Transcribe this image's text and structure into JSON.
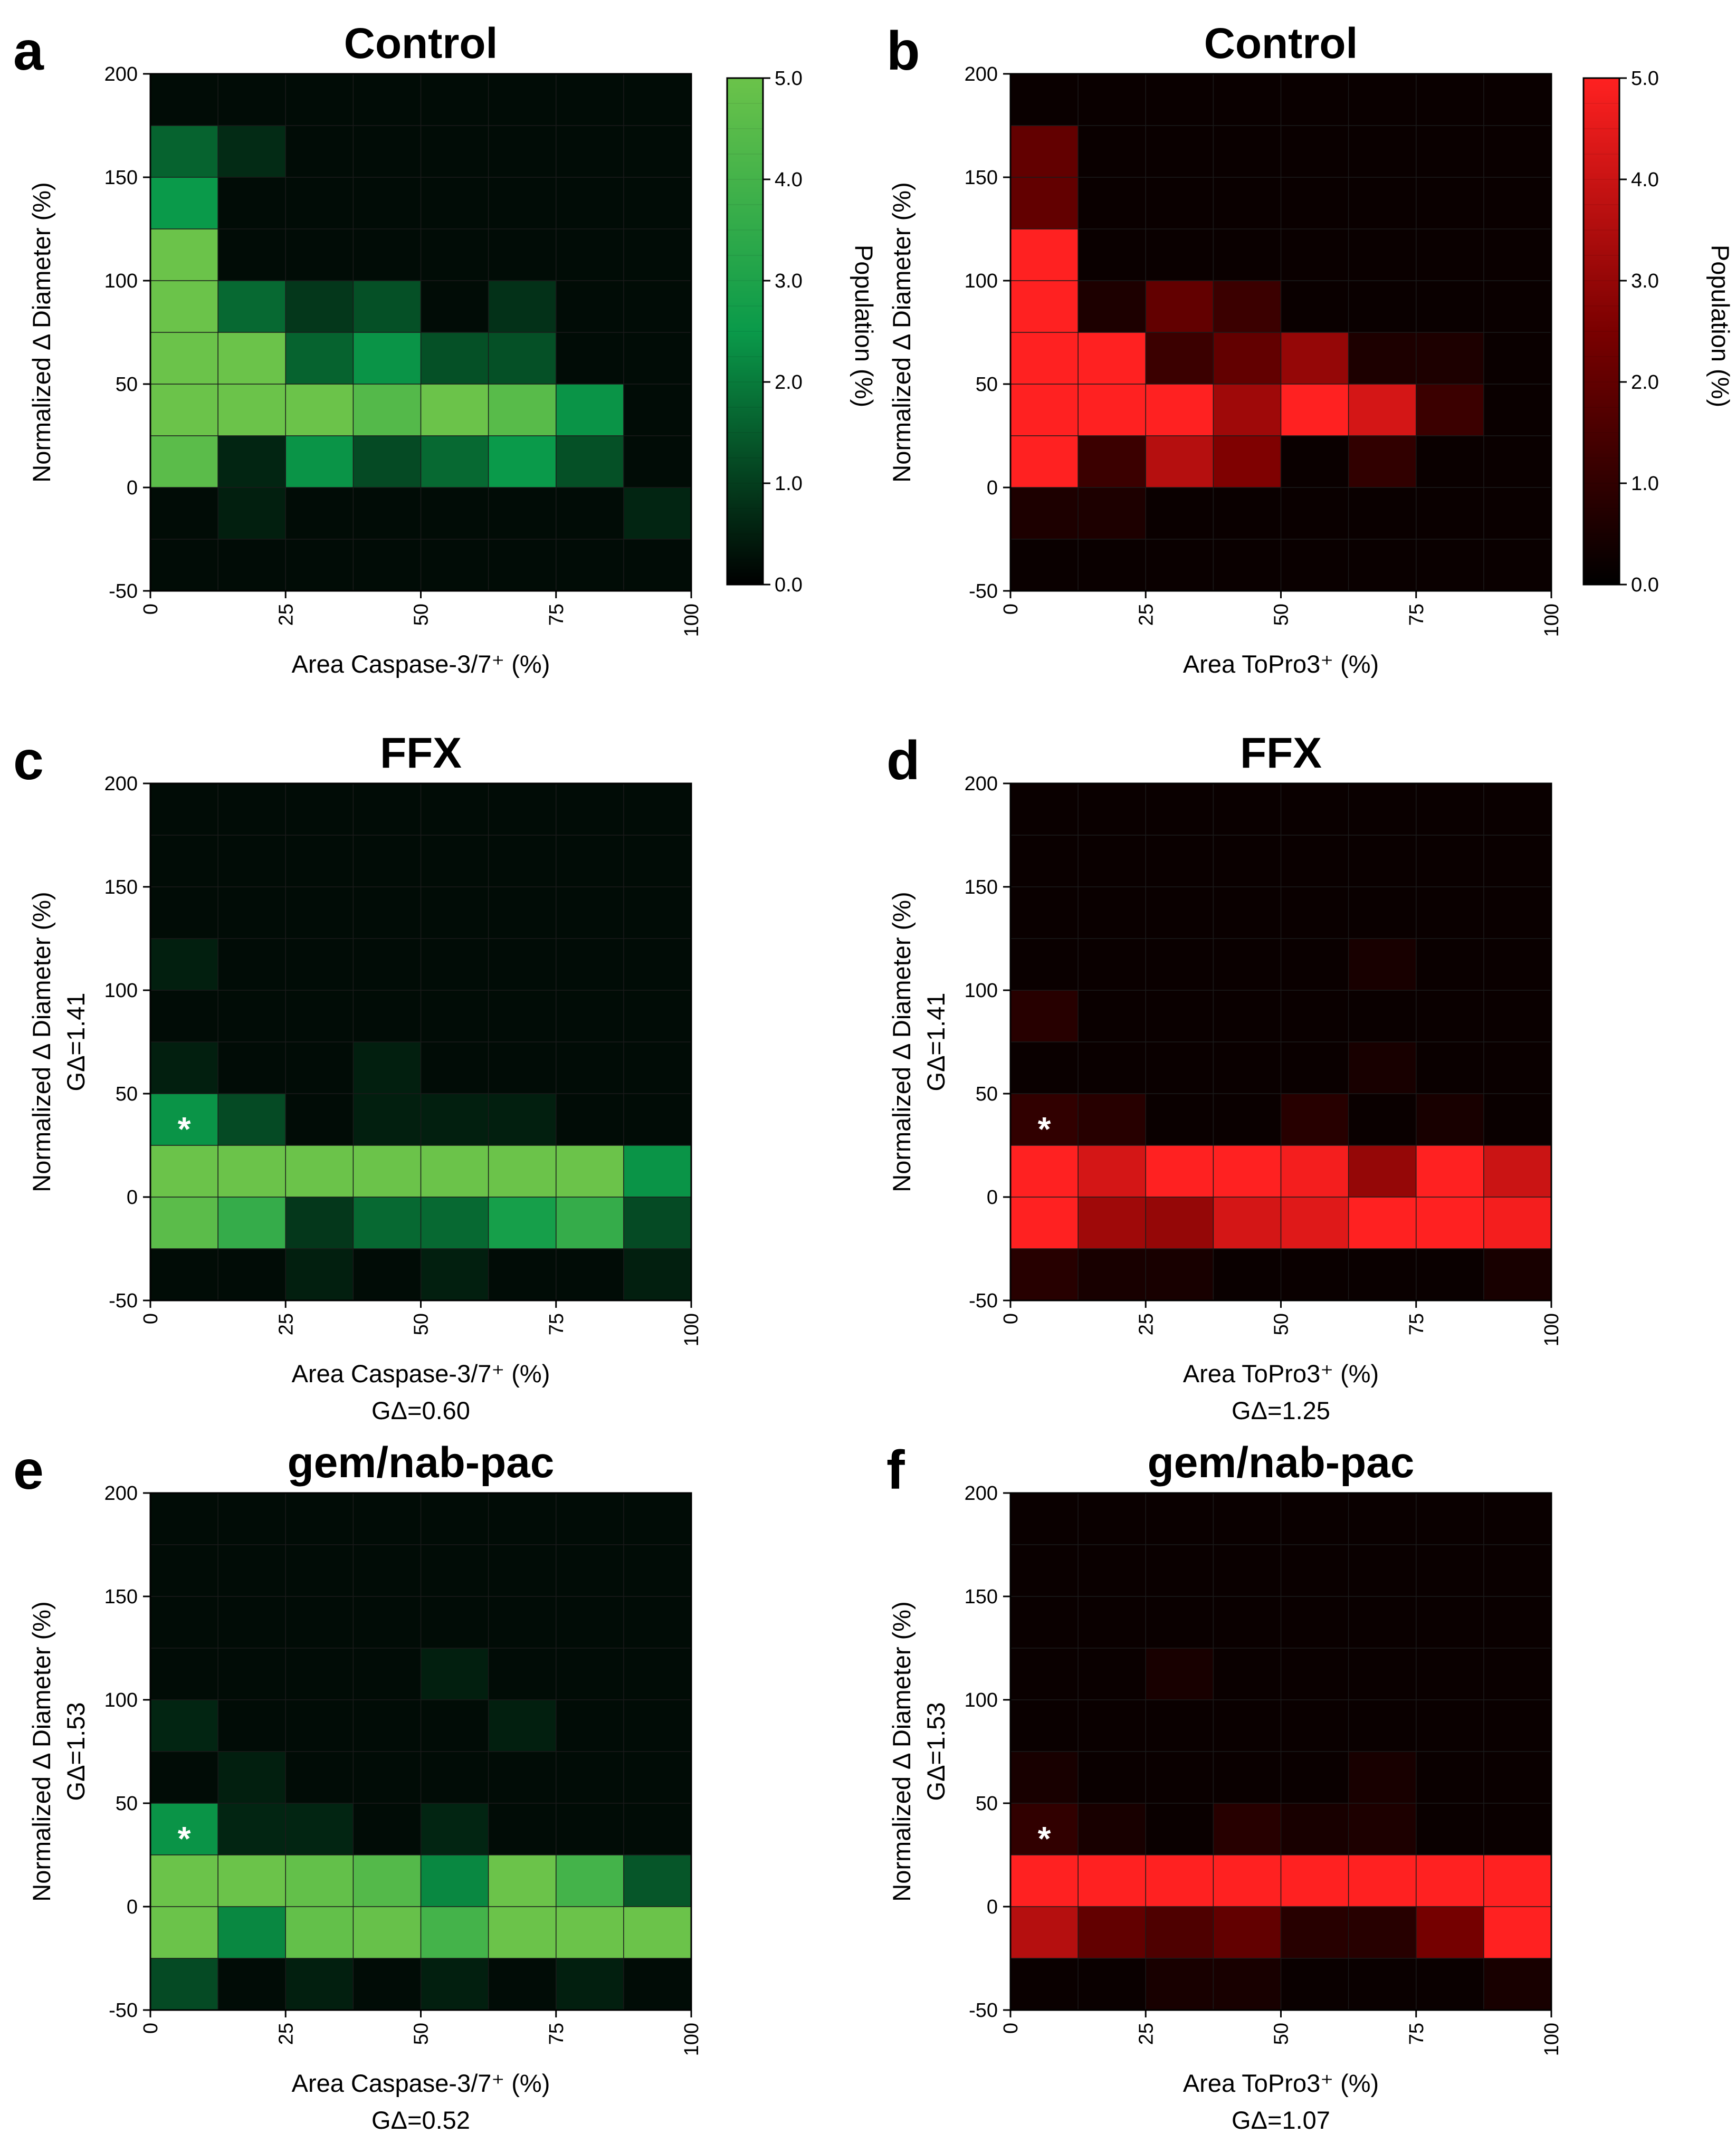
{
  "figure": {
    "axes": {
      "x_ticks": [
        "0",
        "25",
        "50",
        "75",
        "100"
      ],
      "y_ticks": [
        "200",
        "150",
        "100",
        "50",
        "0",
        "-50"
      ],
      "xlim": [
        0,
        100
      ],
      "ylim": [
        -50,
        200
      ],
      "y_label": "Normalized Δ Diameter (%)",
      "x_label_caspase": "Area Caspase-3/7⁺ (%)",
      "x_label_topro": "Area ToPro3⁺ (%)"
    },
    "colorbars": {
      "label": "Population (%)",
      "ticks": [
        "5.0",
        "4.0",
        "3.0",
        "2.0",
        "1.0",
        "0.0"
      ],
      "range": [
        0,
        5
      ],
      "green": {
        "low": "#000000",
        "mid": "#0a9a4a",
        "high": "#6bc34a"
      },
      "red": {
        "low": "#000000",
        "mid": "#7a0000",
        "high": "#ff2121"
      }
    },
    "star": "*"
  },
  "chart_data": [
    {
      "type": "heatmap",
      "letter": "a",
      "title": "Control",
      "colormap": "green",
      "xlabel": "Area Caspase-3/7⁺ (%)",
      "ylabel": "Normalized Δ Diameter (%)",
      "g_x": "",
      "g_y": "",
      "x_bins": [
        0,
        12.5,
        25,
        37.5,
        50,
        62.5,
        75,
        87.5,
        100
      ],
      "y_bins": [
        200,
        175,
        150,
        125,
        100,
        75,
        50,
        25,
        0,
        -25,
        -50
      ],
      "values": [
        [
          0.2,
          0.2,
          0.2,
          0.2,
          0.2,
          0.2,
          0.2,
          0.2
        ],
        [
          1.6,
          0.7,
          0.2,
          0.2,
          0.2,
          0.2,
          0.2,
          0.2
        ],
        [
          2.5,
          0.2,
          0.2,
          0.2,
          0.2,
          0.2,
          0.2,
          0.2
        ],
        [
          5.0,
          0.2,
          0.2,
          0.2,
          0.2,
          0.2,
          0.2,
          0.2
        ],
        [
          5.0,
          1.7,
          0.9,
          1.3,
          0.2,
          0.8,
          0.2,
          0.2
        ],
        [
          5.0,
          5.0,
          1.6,
          2.4,
          1.3,
          1.3,
          0.2,
          0.2
        ],
        [
          5.0,
          5.0,
          5.0,
          4.4,
          5.0,
          4.5,
          2.4,
          0.2
        ],
        [
          4.6,
          0.6,
          2.4,
          1.2,
          1.7,
          2.5,
          1.3,
          0.2
        ],
        [
          0.2,
          0.5,
          0.2,
          0.2,
          0.2,
          0.2,
          0.2,
          0.6
        ],
        [
          0.2,
          0.2,
          0.2,
          0.2,
          0.2,
          0.2,
          0.2,
          0.2
        ]
      ]
    },
    {
      "type": "heatmap",
      "letter": "b",
      "title": "Control",
      "colormap": "red",
      "xlabel": "Area ToPro3⁺ (%)",
      "ylabel": "Normalized Δ Diameter (%)",
      "g_x": "",
      "g_y": "",
      "x_bins": [
        0,
        12.5,
        25,
        37.5,
        50,
        62.5,
        75,
        87.5,
        100
      ],
      "y_bins": [
        200,
        175,
        150,
        125,
        100,
        75,
        50,
        25,
        0,
        -25,
        -50
      ],
      "values": [
        [
          0.2,
          0.2,
          0.2,
          0.2,
          0.2,
          0.2,
          0.2,
          0.2
        ],
        [
          2.0,
          0.2,
          0.2,
          0.2,
          0.2,
          0.2,
          0.2,
          0.2
        ],
        [
          2.0,
          0.2,
          0.2,
          0.2,
          0.2,
          0.2,
          0.2,
          0.2
        ],
        [
          5.0,
          0.2,
          0.2,
          0.2,
          0.2,
          0.2,
          0.2,
          0.2
        ],
        [
          5.0,
          0.6,
          2.0,
          1.2,
          0.2,
          0.2,
          0.2,
          0.2
        ],
        [
          5.0,
          5.0,
          1.2,
          2.0,
          3.0,
          0.6,
          0.6,
          0.2
        ],
        [
          5.0,
          5.0,
          5.0,
          3.2,
          5.0,
          4.2,
          1.2,
          0.2
        ],
        [
          5.0,
          1.2,
          3.6,
          2.6,
          0.2,
          1.0,
          0.2,
          0.2
        ],
        [
          0.6,
          0.6,
          0.2,
          0.2,
          0.2,
          0.2,
          0.2,
          0.2
        ],
        [
          0.2,
          0.2,
          0.2,
          0.2,
          0.2,
          0.2,
          0.2,
          0.2
        ]
      ]
    },
    {
      "type": "heatmap",
      "letter": "c",
      "title": "FFX",
      "colormap": "green",
      "xlabel": "Area Caspase-3/7⁺ (%)",
      "ylabel": "Normalized Δ Diameter (%)",
      "g_x": "GΔ=0.60",
      "g_y": "GΔ=1.41",
      "x_bins": [
        0,
        12.5,
        25,
        37.5,
        50,
        62.5,
        75,
        87.5,
        100
      ],
      "y_bins": [
        200,
        175,
        150,
        125,
        100,
        75,
        50,
        25,
        0,
        -25,
        -50
      ],
      "star_cell": [
        6,
        0
      ],
      "values": [
        [
          0.2,
          0.2,
          0.2,
          0.2,
          0.2,
          0.2,
          0.2,
          0.2
        ],
        [
          0.2,
          0.2,
          0.2,
          0.2,
          0.2,
          0.2,
          0.2,
          0.2
        ],
        [
          0.2,
          0.2,
          0.2,
          0.2,
          0.2,
          0.2,
          0.2,
          0.2
        ],
        [
          0.5,
          0.2,
          0.2,
          0.2,
          0.2,
          0.2,
          0.2,
          0.2
        ],
        [
          0.2,
          0.2,
          0.2,
          0.2,
          0.2,
          0.2,
          0.2,
          0.2
        ],
        [
          0.5,
          0.2,
          0.2,
          0.5,
          0.2,
          0.2,
          0.2,
          0.2
        ],
        [
          2.4,
          1.2,
          0.2,
          0.5,
          0.5,
          0.5,
          0.2,
          0.2
        ],
        [
          5.0,
          5.0,
          5.0,
          5.0,
          5.0,
          5.0,
          5.0,
          2.4
        ],
        [
          4.6,
          3.6,
          0.9,
          1.7,
          1.7,
          2.8,
          3.6,
          1.2
        ],
        [
          0.2,
          0.2,
          0.5,
          0.2,
          0.5,
          0.2,
          0.2,
          0.5
        ]
      ]
    },
    {
      "type": "heatmap",
      "letter": "d",
      "title": "FFX",
      "colormap": "red",
      "xlabel": "Area ToPro3⁺ (%)",
      "ylabel": "Normalized Δ Diameter (%)",
      "g_x": "GΔ=1.25",
      "g_y": "GΔ=1.41",
      "x_bins": [
        0,
        12.5,
        25,
        37.5,
        50,
        62.5,
        75,
        87.5,
        100
      ],
      "y_bins": [
        200,
        175,
        150,
        125,
        100,
        75,
        50,
        25,
        0,
        -25,
        -50
      ],
      "star_cell": [
        6,
        0
      ],
      "values": [
        [
          0.2,
          0.2,
          0.2,
          0.2,
          0.2,
          0.2,
          0.2,
          0.2
        ],
        [
          0.2,
          0.2,
          0.2,
          0.2,
          0.2,
          0.2,
          0.2,
          0.2
        ],
        [
          0.2,
          0.2,
          0.2,
          0.2,
          0.2,
          0.2,
          0.2,
          0.2
        ],
        [
          0.2,
          0.2,
          0.2,
          0.2,
          0.2,
          0.5,
          0.2,
          0.2
        ],
        [
          0.8,
          0.2,
          0.2,
          0.2,
          0.2,
          0.2,
          0.2,
          0.2
        ],
        [
          0.2,
          0.2,
          0.2,
          0.2,
          0.2,
          0.5,
          0.2,
          0.2
        ],
        [
          1.0,
          0.8,
          0.2,
          0.2,
          0.8,
          0.2,
          0.5,
          0.2
        ],
        [
          5.0,
          4.2,
          5.0,
          5.0,
          4.8,
          3.0,
          5.0,
          4.0
        ],
        [
          5.0,
          3.2,
          3.0,
          4.2,
          4.4,
          5.0,
          5.0,
          4.8
        ],
        [
          0.8,
          0.5,
          0.5,
          0.2,
          0.2,
          0.2,
          0.2,
          0.5
        ]
      ]
    },
    {
      "type": "heatmap",
      "letter": "e",
      "title": "gem/nab-pac",
      "colormap": "green",
      "xlabel": "Area Caspase-3/7⁺ (%)",
      "ylabel": "Normalized Δ Diameter (%)",
      "g_x": "GΔ=0.52",
      "g_y": "GΔ=1.53",
      "x_bins": [
        0,
        12.5,
        25,
        37.5,
        50,
        62.5,
        75,
        87.5,
        100
      ],
      "y_bins": [
        200,
        175,
        150,
        125,
        100,
        75,
        50,
        25,
        0,
        -25,
        -50
      ],
      "star_cell": [
        6,
        0
      ],
      "values": [
        [
          0.2,
          0.2,
          0.2,
          0.2,
          0.2,
          0.2,
          0.2,
          0.2
        ],
        [
          0.2,
          0.2,
          0.2,
          0.2,
          0.2,
          0.2,
          0.2,
          0.2
        ],
        [
          0.2,
          0.2,
          0.2,
          0.2,
          0.2,
          0.2,
          0.2,
          0.2
        ],
        [
          0.2,
          0.2,
          0.2,
          0.2,
          0.5,
          0.2,
          0.2,
          0.2
        ],
        [
          0.6,
          0.2,
          0.2,
          0.2,
          0.2,
          0.5,
          0.2,
          0.2
        ],
        [
          0.2,
          0.5,
          0.2,
          0.2,
          0.2,
          0.2,
          0.2,
          0.2
        ],
        [
          2.4,
          0.6,
          0.6,
          0.2,
          0.6,
          0.2,
          0.2,
          0.2
        ],
        [
          5.0,
          5.0,
          4.8,
          4.4,
          2.2,
          5.0,
          4.0,
          1.4
        ],
        [
          5.0,
          2.2,
          4.8,
          4.9,
          4.0,
          5.0,
          5.0,
          5.0
        ],
        [
          1.2,
          0.2,
          0.5,
          0.2,
          0.5,
          0.2,
          0.5,
          0.2
        ]
      ]
    },
    {
      "type": "heatmap",
      "letter": "f",
      "title": "gem/nab-pac",
      "colormap": "red",
      "xlabel": "Area ToPro3⁺ (%)",
      "ylabel": "Normalized Δ Diameter (%)",
      "g_x": "GΔ=1.07",
      "g_y": "GΔ=1.53",
      "x_bins": [
        0,
        12.5,
        25,
        37.5,
        50,
        62.5,
        75,
        87.5,
        100
      ],
      "y_bins": [
        200,
        175,
        150,
        125,
        100,
        75,
        50,
        25,
        0,
        -25,
        -50
      ],
      "star_cell": [
        6,
        0
      ],
      "values": [
        [
          0.2,
          0.2,
          0.2,
          0.2,
          0.2,
          0.2,
          0.2,
          0.2
        ],
        [
          0.2,
          0.2,
          0.2,
          0.2,
          0.2,
          0.2,
          0.2,
          0.2
        ],
        [
          0.2,
          0.2,
          0.2,
          0.2,
          0.2,
          0.2,
          0.2,
          0.2
        ],
        [
          0.2,
          0.2,
          0.5,
          0.2,
          0.2,
          0.2,
          0.2,
          0.2
        ],
        [
          0.2,
          0.2,
          0.2,
          0.2,
          0.2,
          0.2,
          0.2,
          0.2
        ],
        [
          0.5,
          0.2,
          0.2,
          0.2,
          0.2,
          0.5,
          0.2,
          0.2
        ],
        [
          1.0,
          0.5,
          0.2,
          0.8,
          0.5,
          0.6,
          0.2,
          0.2
        ],
        [
          5.0,
          5.0,
          5.0,
          5.0,
          5.0,
          5.0,
          5.0,
          5.0
        ],
        [
          3.6,
          2.0,
          1.6,
          2.0,
          0.8,
          0.8,
          2.4,
          5.0
        ],
        [
          0.2,
          0.2,
          0.5,
          0.5,
          0.2,
          0.2,
          0.2,
          0.5
        ]
      ]
    }
  ]
}
